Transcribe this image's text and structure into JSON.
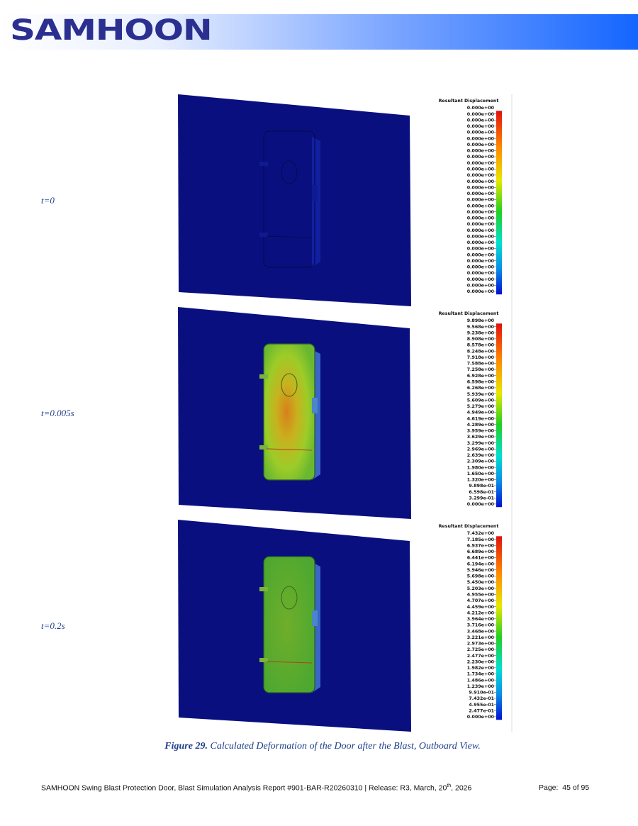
{
  "header": {
    "logo": "SAMHOON"
  },
  "panels": [
    {
      "label": "t=0",
      "legend_title": "Resultant Displacement",
      "legend_values": [
        "0.000e+00",
        "0.000e+00",
        "0.000e+00",
        "0.000e+00",
        "0.000e+00",
        "0.000e+00",
        "0.000e+00",
        "0.000e+00",
        "0.000e+00",
        "0.000e+00",
        "0.000e+00",
        "0.000e+00",
        "0.000e+00",
        "0.000e+00",
        "0.000e+00",
        "0.000e+00",
        "0.000e+00",
        "0.000e+00",
        "0.000e+00",
        "0.000e+00",
        "0.000e+00",
        "0.000e+00",
        "0.000e+00",
        "0.000e+00",
        "0.000e+00",
        "0.000e+00",
        "0.000e+00",
        "0.000e+00",
        "0.000e+00",
        "0.000e+00",
        "0.000e+00"
      ]
    },
    {
      "label": "t=0.005s",
      "legend_title": "Resultant Displacement",
      "legend_values": [
        "9.898e+00",
        "9.568e+00",
        "9.238e+00",
        "8.908e+00",
        "8.578e+00",
        "8.248e+00",
        "7.918e+00",
        "7.588e+00",
        "7.258e+00",
        "6.928e+00",
        "6.598e+00",
        "6.268e+00",
        "5.939e+00",
        "5.609e+00",
        "5.279e+00",
        "4.949e+00",
        "4.619e+00",
        "4.289e+00",
        "3.959e+00",
        "3.629e+00",
        "3.299e+00",
        "2.969e+00",
        "2.639e+00",
        "2.309e+00",
        "1.980e+00",
        "1.650e+00",
        "1.320e+00",
        "9.898e-01",
        "6.598e-01",
        "3.299e-01",
        "0.000e+00"
      ]
    },
    {
      "label": "t=0.2s",
      "legend_title": "Resultant Displacement",
      "legend_values": [
        "7.432e+00",
        "7.185e+00",
        "6.937e+00",
        "6.689e+00",
        "6.441e+00",
        "6.194e+00",
        "5.946e+00",
        "5.698e+00",
        "5.450e+00",
        "5.203e+00",
        "4.955e+00",
        "4.707e+00",
        "4.459e+00",
        "4.212e+00",
        "3.964e+00",
        "3.716e+00",
        "3.468e+00",
        "3.221e+00",
        "2.973e+00",
        "2.725e+00",
        "2.477e+00",
        "2.230e+00",
        "1.982e+00",
        "1.734e+00",
        "1.486e+00",
        "1.239e+00",
        "9.910e-01",
        "7.432e-01",
        "4.955e-01",
        "2.477e-01",
        "0.000e+00"
      ]
    }
  ],
  "caption": {
    "number": "Figure 29.",
    "text": "Calculated Deformation of the Door after the Blast, Outboard View."
  },
  "footer": {
    "report": "SAMHOON Swing Blast Protection Door, Blast Simulation Analysis Report #901-BAR-R20260310 | Release: R3, March, 20",
    "report_sup": "th",
    "report_end": ", 2026",
    "page": "Page:  45 of 95"
  }
}
